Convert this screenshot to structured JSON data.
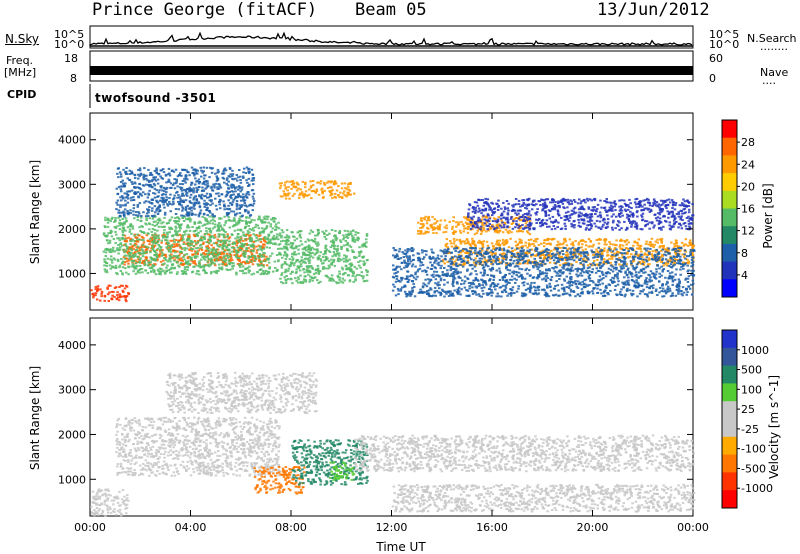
{
  "header": {
    "station": "Prince George (fitACF)",
    "beam": "Beam 05",
    "date": "13/Jun/2012"
  },
  "panels": {
    "nsky": {
      "label": "N.Sky",
      "ticks": [
        "10^5",
        "10^0"
      ]
    },
    "nsearch": {
      "label": "N.Search",
      "ticks": [
        "10^5",
        "10^0"
      ],
      "dots": "........"
    },
    "freq": {
      "label_line1": "Freq.",
      "label_line2": "[MHz]",
      "ticks": [
        "18",
        "8"
      ]
    },
    "nave": {
      "label": "Nave",
      "ticks": [
        "60",
        "0"
      ],
      "dots": "...."
    },
    "cpid": {
      "label": "CPID",
      "text": "twofsound  -3501"
    }
  },
  "chart_data": [
    {
      "type": "heatmap",
      "name": "power",
      "ylabel": "Slant Range [km]",
      "yticks": [
        1000,
        2000,
        3000,
        4000
      ],
      "xticks": [
        "00:00",
        "04:00",
        "08:00",
        "12:00",
        "16:00",
        "20:00",
        "00:00"
      ],
      "xlim_hours": [
        0,
        24
      ],
      "ylim_km": [
        180,
        4600
      ],
      "colorbar": {
        "label": "Power [dB]",
        "ticks": [
          "28",
          "24",
          "20",
          "16",
          "12",
          "8",
          "4"
        ],
        "colors": [
          "#ff0000",
          "#ff6600",
          "#ff9900",
          "#ffcc00",
          "#aadd22",
          "#55bb66",
          "#228866",
          "#1d5fa8",
          "#2233bb",
          "#0000ff"
        ]
      },
      "bands_hours_km": [
        {
          "t": [
            0.0,
            1.5
          ],
          "range": [
            400,
            750
          ],
          "color": "#ff3300"
        },
        {
          "t": [
            1.3,
            7.0
          ],
          "range": [
            1200,
            1900
          ],
          "color": "#ff6600"
        },
        {
          "t": [
            0.5,
            7.5
          ],
          "range": [
            1000,
            2300
          ],
          "color": "#55bb66"
        },
        {
          "t": [
            1.0,
            6.5
          ],
          "range": [
            2300,
            3400
          ],
          "color": "#1d5fa8"
        },
        {
          "t": [
            7.5,
            10.5
          ],
          "range": [
            2700,
            3100
          ],
          "color": "#ff9900"
        },
        {
          "t": [
            7.5,
            11.0
          ],
          "range": [
            800,
            2000
          ],
          "color": "#55bb66"
        },
        {
          "t": [
            13.0,
            17.5
          ],
          "range": [
            1900,
            2300
          ],
          "color": "#ff9900"
        },
        {
          "t": [
            14.0,
            24.0
          ],
          "range": [
            1200,
            1800
          ],
          "color": "#ff9900"
        },
        {
          "t": [
            12.0,
            24.0
          ],
          "range": [
            500,
            1600
          ],
          "color": "#1d5fa8"
        },
        {
          "t": [
            15.0,
            24.0
          ],
          "range": [
            2000,
            2700
          ],
          "color": "#2233bb"
        }
      ]
    },
    {
      "type": "heatmap",
      "name": "velocity",
      "ylabel": "Slant Range [km]",
      "xlabel": "Time UT",
      "yticks": [
        1000,
        2000,
        3000,
        4000
      ],
      "xticks": [
        "00:00",
        "04:00",
        "08:00",
        "12:00",
        "16:00",
        "20:00",
        "00:00"
      ],
      "xlim_hours": [
        0,
        24
      ],
      "ylim_km": [
        180,
        4600
      ],
      "colorbar": {
        "label": "Velocity [m s^-1]",
        "ticks": [
          "1000",
          "500",
          "100",
          "25",
          "-25",
          "-100",
          "-500",
          "-1000"
        ],
        "colors": [
          "#2233cc",
          "#335599",
          "#228866",
          "#55cc33",
          "#c8c8c8",
          "#c8c8c8",
          "#ffaa00",
          "#ff7700",
          "#ff3300",
          "#ff0000"
        ]
      },
      "bands_hours_km": [
        {
          "t": [
            0.0,
            1.5
          ],
          "range": [
            200,
            800
          ],
          "color": "#c8c8c8"
        },
        {
          "t": [
            1.0,
            7.5
          ],
          "range": [
            1100,
            2400
          ],
          "color": "#c8c8c8"
        },
        {
          "t": [
            6.5,
            8.5
          ],
          "range": [
            700,
            1300
          ],
          "color": "#ff7700"
        },
        {
          "t": [
            8.0,
            11.0
          ],
          "range": [
            900,
            1900
          ],
          "color": "#228866"
        },
        {
          "t": [
            9.5,
            10.5
          ],
          "range": [
            1000,
            1400
          ],
          "color": "#55cc33"
        },
        {
          "t": [
            10.5,
            24.0
          ],
          "range": [
            1200,
            2000
          ],
          "color": "#c8c8c8"
        },
        {
          "t": [
            12.0,
            24.0
          ],
          "range": [
            300,
            900
          ],
          "color": "#c8c8c8"
        },
        {
          "t": [
            3.0,
            9.0
          ],
          "range": [
            2500,
            3400
          ],
          "color": "#c8c8c8"
        }
      ]
    }
  ]
}
